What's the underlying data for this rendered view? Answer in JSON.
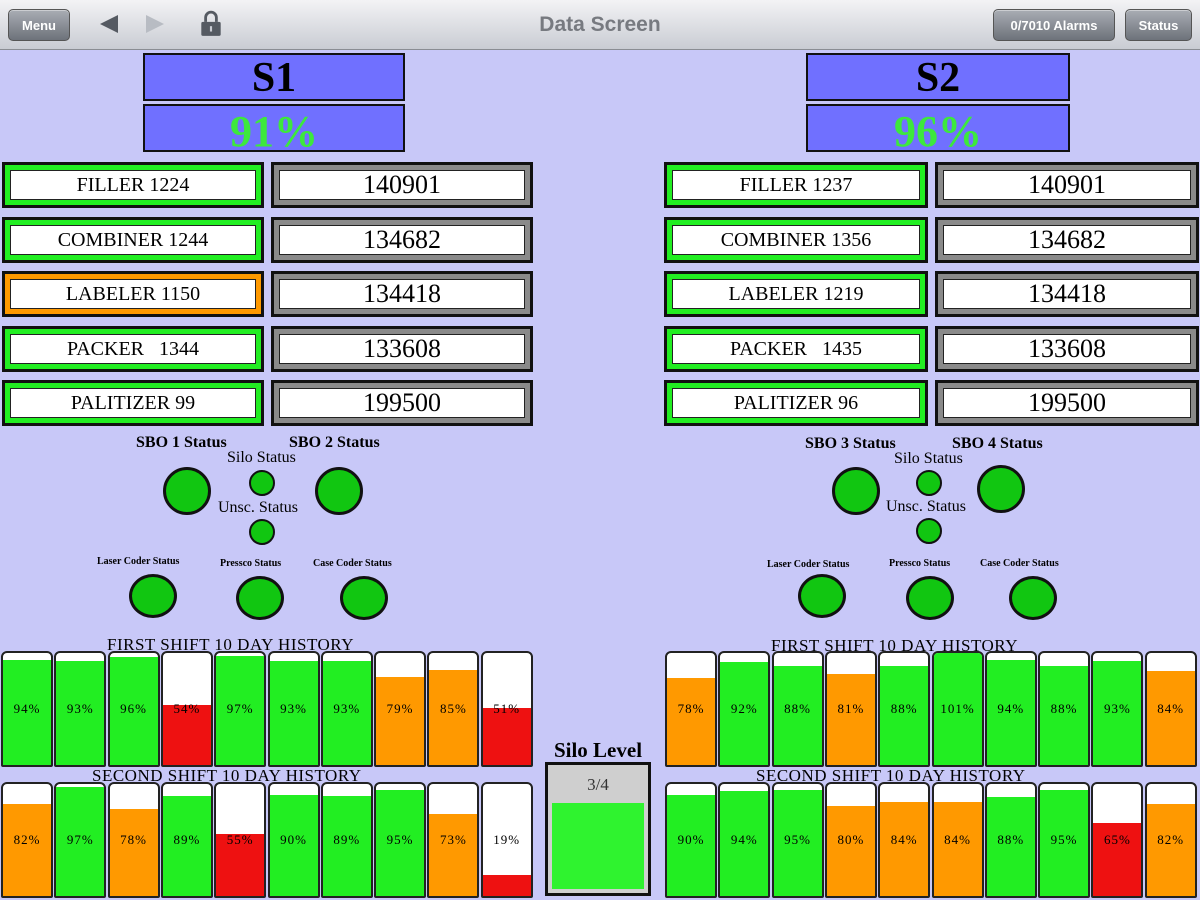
{
  "topbar": {
    "menu_label": "Menu",
    "title": "Data Screen",
    "alarms_label": "0/7010 Alarms",
    "status_label": "Status"
  },
  "stations": [
    {
      "name": "S1",
      "percent": "91%",
      "machines": [
        {
          "label": "FILLER  1224",
          "count": "140901",
          "state": "green"
        },
        {
          "label": "COMBINER  1244",
          "count": "134682",
          "state": "green"
        },
        {
          "label": "LABELER  1150",
          "count": "134418",
          "state": "orange"
        },
        {
          "label": "PACKER   1344",
          "count": "133608",
          "state": "green"
        },
        {
          "label": "PALITIZER  99",
          "count": "199500",
          "state": "green"
        }
      ],
      "status_labels": {
        "sbo_a": "SBO 1 Status",
        "sbo_b": "SBO 2 Status",
        "silo": "Silo Status",
        "unsc": "Unsc. Status",
        "laser": "Laser Coder Status",
        "pressco": "Pressco Status",
        "case": "Case Coder Status"
      },
      "first_shift_title": "FIRST SHIFT 10 DAY HISTORY",
      "first_shift": [
        {
          "label": "94%",
          "value": 94
        },
        {
          "label": "93%",
          "value": 93
        },
        {
          "label": "96%",
          "value": 96
        },
        {
          "label": "54%",
          "value": 54
        },
        {
          "label": "97%",
          "value": 97
        },
        {
          "label": "93%",
          "value": 93
        },
        {
          "label": "93%",
          "value": 93
        },
        {
          "label": "79%",
          "value": 79
        },
        {
          "label": "85%",
          "value": 85
        },
        {
          "label": "51%",
          "value": 51
        }
      ],
      "second_shift_title": "SECOND SHIFT 10 DAY HISTORY",
      "second_shift": [
        {
          "label": "82%",
          "value": 82
        },
        {
          "label": "97%",
          "value": 97
        },
        {
          "label": "78%",
          "value": 78
        },
        {
          "label": "89%",
          "value": 89
        },
        {
          "label": "55%",
          "value": 55
        },
        {
          "label": "90%",
          "value": 90
        },
        {
          "label": "89%",
          "value": 89
        },
        {
          "label": "95%",
          "value": 95
        },
        {
          "label": "73%",
          "value": 73
        },
        {
          "label": "19%",
          "value": 19
        }
      ]
    },
    {
      "name": "S2",
      "percent": "96%",
      "machines": [
        {
          "label": "FILLER  1237",
          "count": "140901",
          "state": "green"
        },
        {
          "label": "COMBINER  1356",
          "count": "134682",
          "state": "green"
        },
        {
          "label": "LABELER  1219",
          "count": "134418",
          "state": "green"
        },
        {
          "label": "PACKER   1435",
          "count": "133608",
          "state": "green"
        },
        {
          "label": "PALITIZER  96",
          "count": "199500",
          "state": "green"
        }
      ],
      "status_labels": {
        "sbo_a": "SBO 3 Status",
        "sbo_b": "SBO 4 Status",
        "silo": "Silo Status",
        "unsc": "Unsc. Status",
        "laser": "Laser Coder Status",
        "pressco": "Pressco Status",
        "case": "Case Coder Status"
      },
      "first_shift_title": "FIRST SHIFT 10 DAY HISTORY",
      "first_shift": [
        {
          "label": "78%",
          "value": 78
        },
        {
          "label": "92%",
          "value": 92
        },
        {
          "label": "88%",
          "value": 88
        },
        {
          "label": "81%",
          "value": 81
        },
        {
          "label": "88%",
          "value": 88
        },
        {
          "label": "101%",
          "value": 101
        },
        {
          "label": "94%",
          "value": 94
        },
        {
          "label": "88%",
          "value": 88
        },
        {
          "label": "93%",
          "value": 93
        },
        {
          "label": "84%",
          "value": 84
        }
      ],
      "second_shift_title": "SECOND SHIFT 10 DAY HISTORY",
      "second_shift": [
        {
          "label": "90%",
          "value": 90
        },
        {
          "label": "94%",
          "value": 94
        },
        {
          "label": "95%",
          "value": 95
        },
        {
          "label": "80%",
          "value": 80
        },
        {
          "label": "84%",
          "value": 84
        },
        {
          "label": "84%",
          "value": 84
        },
        {
          "label": "88%",
          "value": 88
        },
        {
          "label": "95%",
          "value": 95
        },
        {
          "label": "65%",
          "value": 65
        },
        {
          "label": "82%",
          "value": 82
        }
      ]
    }
  ],
  "silo": {
    "title": "Silo Level",
    "level_label": "3/4",
    "level": 0.75
  },
  "colors": {
    "green": "#22ee22",
    "orange": "#ff9900",
    "red": "#ee1111",
    "indicator_green": "#11c611",
    "header_blue": "#7070ff",
    "percent_green": "#3de83d"
  },
  "icons": [
    "back-arrow-icon",
    "forward-arrow-icon",
    "lock-icon"
  ]
}
